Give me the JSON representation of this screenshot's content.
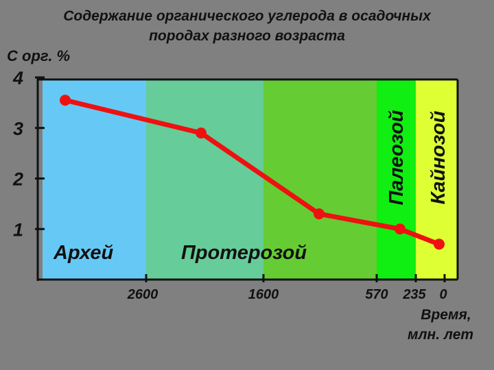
{
  "chart_data": {
    "type": "line",
    "title": [
      "Содержание органического углерода в осадочных",
      "породах разного возраста"
    ],
    "ylabel": "С орг. %",
    "xlabel": [
      "Время,",
      "млн. лет"
    ],
    "y_ticks": [
      "1",
      "2",
      "3",
      "4"
    ],
    "x_ticks": [
      "2600",
      "1600",
      "570",
      "235",
      "0"
    ],
    "ylim": [
      0,
      4
    ],
    "eras": [
      {
        "name": "Архей",
        "color": "#66c9f5",
        "label_orientation": "horizontal"
      },
      {
        "name": "Протерозой",
        "color": "#66cc99",
        "label_orientation": "horizontal"
      },
      {
        "name": "",
        "color": "#66cc33",
        "label_orientation": "none"
      },
      {
        "name": "Палеозой",
        "color": "#11ee11",
        "label_orientation": "vertical"
      },
      {
        "name": "Кайнозой",
        "color": "#ddff33",
        "label_orientation": "vertical"
      }
    ],
    "series": [
      {
        "values": [
          3.55,
          2.9,
          1.3,
          1.0,
          0.7
        ]
      }
    ],
    "line_color": "#ee1111",
    "grid": false
  }
}
